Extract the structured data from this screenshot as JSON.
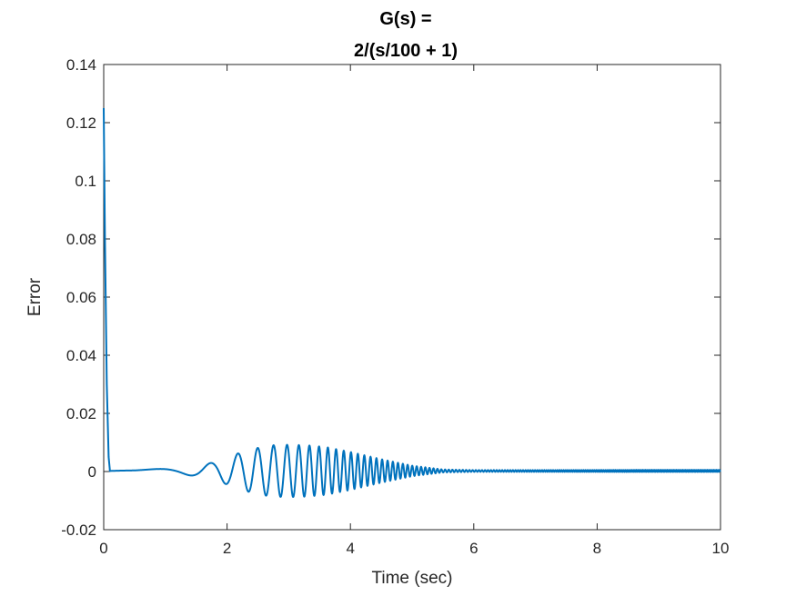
{
  "chart_data": {
    "type": "line",
    "title_line1": "G(s) =",
    "title_line2": "2/(s/100 + 1)",
    "xlabel": "Time (sec)",
    "ylabel": "Error",
    "xlim": [
      0,
      10
    ],
    "ylim": [
      -0.02,
      0.14
    ],
    "x_ticks": [
      0,
      2,
      4,
      6,
      8,
      10
    ],
    "x_tick_labels": [
      "0",
      "2",
      "4",
      "6",
      "8",
      "10"
    ],
    "y_ticks": [
      -0.02,
      0,
      0.02,
      0.04,
      0.06,
      0.08,
      0.1,
      0.12,
      0.14
    ],
    "y_tick_labels": [
      "-0.02",
      "0",
      "0.02",
      "0.04",
      "0.06",
      "0.08",
      "0.1",
      "0.12",
      "0.14"
    ],
    "grid": false,
    "series_color": "#0072BD",
    "series": [
      {
        "x": [
          0,
          0.02,
          0.05,
          0.08,
          0.1,
          0.5,
          1.0,
          1.2,
          1.5,
          1.8,
          2.1,
          2.4,
          2.7,
          3.0,
          3.3,
          3.6,
          4.0,
          4.5,
          5.0,
          5.5,
          6.0,
          8.0,
          10.0
        ],
        "envelope": [
          0.125,
          0.08,
          0.03,
          0.005,
          0.0005,
          0.0003,
          0.0008,
          0.001,
          0.0018,
          0.003,
          0.0055,
          0.0075,
          0.0088,
          0.009,
          0.0088,
          0.0082,
          0.0065,
          0.004,
          0.0018,
          0.0005,
          0.0003,
          0.0003,
          0.0003
        ]
      }
    ]
  }
}
